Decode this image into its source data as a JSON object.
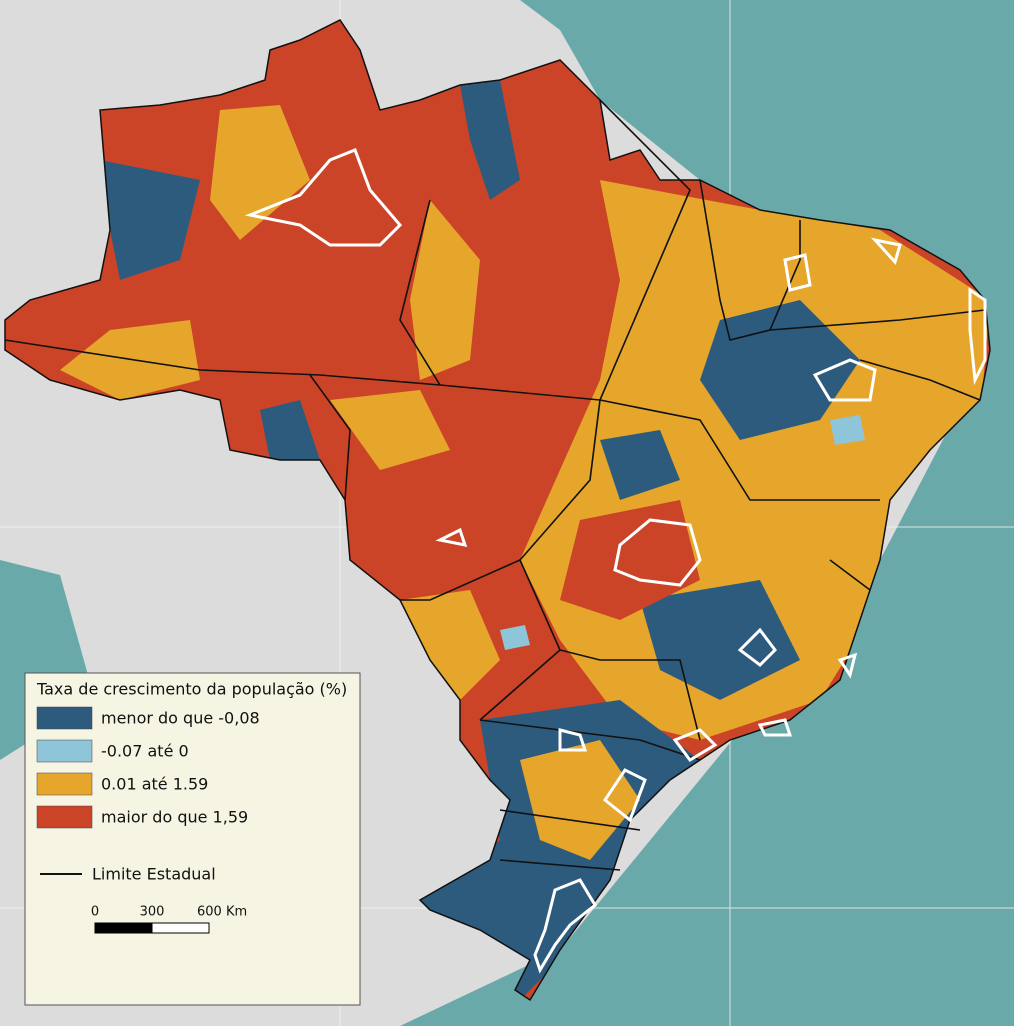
{
  "legend": {
    "title": "Taxa de crescimento da população (%)",
    "items": [
      {
        "label": "menor do que -0,08",
        "color": "#2d5b7d"
      },
      {
        "label": "-0.07 até  0",
        "color": "#8ec5d8"
      },
      {
        "label": "0.01 até 1.59",
        "color": "#e6a62b"
      },
      {
        "label": "maior do que 1,59",
        "color": "#cc4428"
      }
    ],
    "boundary": "Limite Estadual",
    "scale": [
      "0",
      "300",
      "600 Km"
    ]
  }
}
